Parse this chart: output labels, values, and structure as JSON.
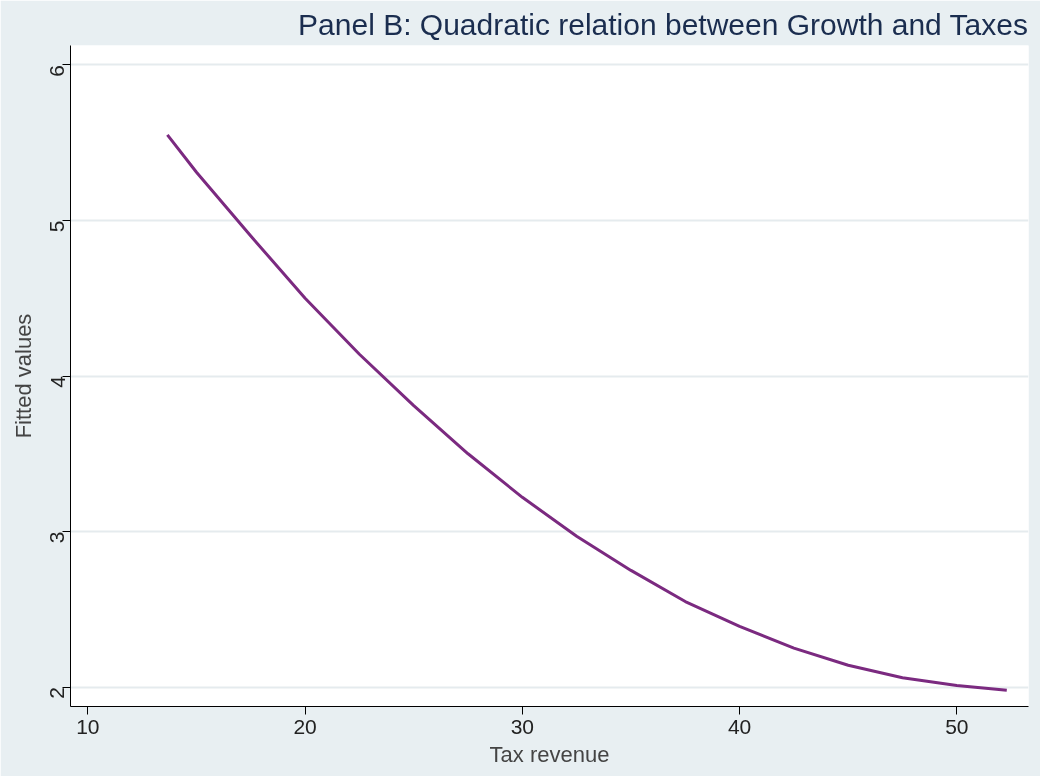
{
  "chart_data": {
    "type": "line",
    "title": "Panel B: Quadratic relation between Growth and Taxes",
    "xlabel": "Tax revenue",
    "ylabel": "Fitted values",
    "series": [
      {
        "color": "#7b2a80",
        "x": [
          13.66,
          15,
          17.5,
          20,
          22.5,
          25,
          27.5,
          30,
          32.5,
          35,
          37.5,
          40,
          42.5,
          45,
          47.5,
          50,
          52.3
        ],
        "values": [
          5.55,
          5.31,
          4.9,
          4.5,
          4.14,
          3.81,
          3.5,
          3.22,
          2.97,
          2.75,
          2.55,
          2.39,
          2.25,
          2.14,
          2.06,
          2.01,
          1.98
        ]
      }
    ],
    "xlim": [
      9.2,
      53.3
    ],
    "ylim": [
      1.875,
      6.125
    ],
    "xticks": [
      10,
      20,
      30,
      40,
      50
    ],
    "yticks": [
      2,
      3,
      4,
      5,
      6
    ],
    "grid": "y",
    "marker": "none",
    "line_style": "solid"
  }
}
